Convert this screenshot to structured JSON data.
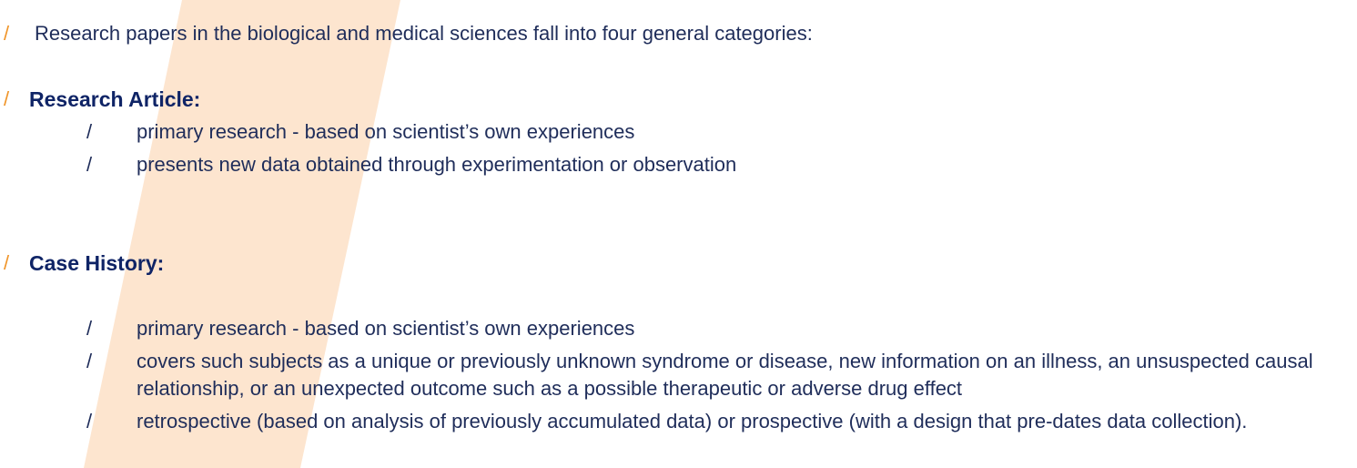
{
  "bullets": {
    "level1": "/",
    "level2": "/"
  },
  "intro": "Research papers in the biological and medical sciences fall into four general categories:",
  "sections": [
    {
      "heading": "Research Article:",
      "items": [
        "primary research - based on scientist’s own experiences",
        "presents new data obtained through experimentation or observation"
      ]
    },
    {
      "heading": "Case History:",
      "items": [
        "primary research - based on scientist’s own experiences",
        "covers such subjects as a unique or previously unknown syndrome or disease, new information on an illness, an unsuspected causal relationship, or an unexpected outcome such as a possible therapeutic or adverse drug effect",
        "retrospective (based on analysis of previously accumulated data)  or prospective (with a design that pre-dates data collection)."
      ]
    }
  ],
  "colors": {
    "accent": "#f0952a",
    "stripe": "#fde5cf",
    "heading": "#0f2466",
    "text": "#1f2d5a"
  }
}
